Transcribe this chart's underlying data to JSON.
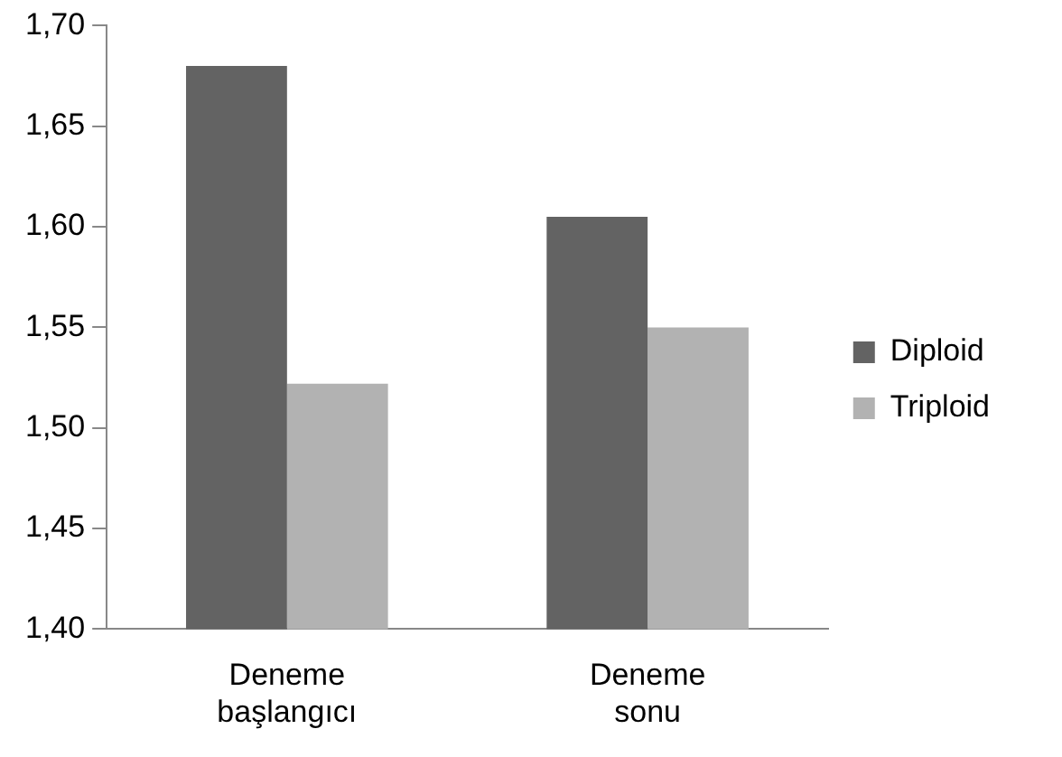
{
  "chart_data": {
    "type": "bar",
    "categories": [
      "Deneme\nbaşlangıcı",
      "Deneme\nsonu"
    ],
    "series": [
      {
        "name": "Diploid",
        "color": "#636363",
        "values": [
          1.68,
          1.605
        ]
      },
      {
        "name": "Triploid",
        "color": "#b2b2b2",
        "values": [
          1.522,
          1.55
        ]
      }
    ],
    "ylim": [
      1.4,
      1.7
    ],
    "yticks": [
      {
        "value": 1.4,
        "label": "1,40"
      },
      {
        "value": 1.45,
        "label": "1,45"
      },
      {
        "value": 1.5,
        "label": "1,50"
      },
      {
        "value": 1.55,
        "label": "1,55"
      },
      {
        "value": 1.6,
        "label": "1,60"
      },
      {
        "value": 1.65,
        "label": "1,65"
      },
      {
        "value": 1.7,
        "label": "1,70"
      }
    ],
    "grid": false,
    "legend": "right"
  }
}
